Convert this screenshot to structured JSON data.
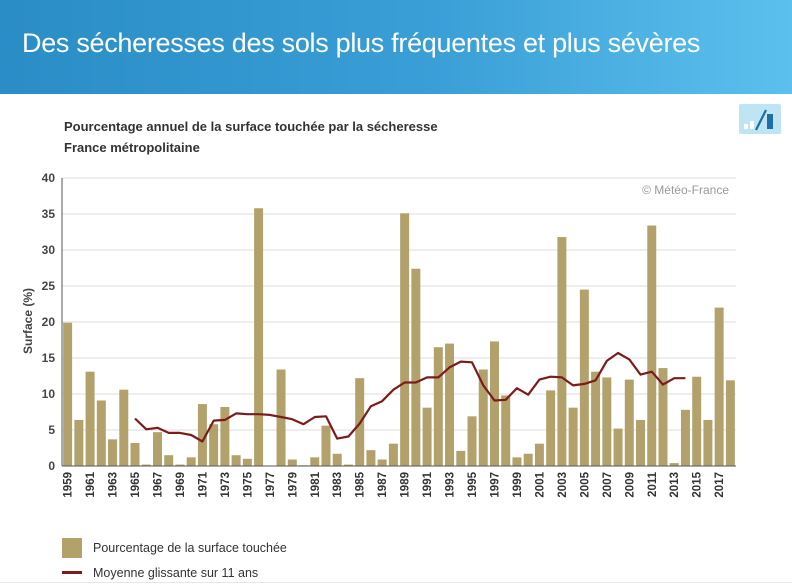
{
  "header": {
    "title": "Des sécheresses des sols plus fréquentes et plus sévères"
  },
  "chart_title_line1": "Pourcentage annuel de la surface touchée par la sécheresse",
  "chart_title_line2": "France métropolitaine",
  "watermark": "© Météo-France",
  "icons": {
    "chart_toggle": "bar-chart-icon"
  },
  "colors": {
    "header": "#2a8dc6",
    "bars": "#b3a16c",
    "line": "#7b1c1c"
  },
  "legend": {
    "bars": "Pourcentage de la surface touchée",
    "line": "Moyenne glissante sur 11 ans"
  },
  "chart_data": {
    "type": "bar",
    "ylabel": "Surface (%)",
    "ylim": [
      0,
      40
    ],
    "yticks": [
      0,
      5,
      10,
      15,
      20,
      25,
      30,
      35,
      40
    ],
    "grid": true,
    "xtick_labels": [
      "1959",
      "1961",
      "1963",
      "1965",
      "1967",
      "1969",
      "1971",
      "1973",
      "1975",
      "1977",
      "1979",
      "1981",
      "1983",
      "1985",
      "1987",
      "1989",
      "1991",
      "1993",
      "1995",
      "1997",
      "1999",
      "2001",
      "2003",
      "2005",
      "2007",
      "2009",
      "2011",
      "2013",
      "2015",
      "2017"
    ],
    "categories": [
      1959,
      1960,
      1961,
      1962,
      1963,
      1964,
      1965,
      1966,
      1967,
      1968,
      1969,
      1970,
      1971,
      1972,
      1973,
      1974,
      1975,
      1976,
      1977,
      1978,
      1979,
      1980,
      1981,
      1982,
      1983,
      1984,
      1985,
      1986,
      1987,
      1988,
      1989,
      1990,
      1991,
      1992,
      1993,
      1994,
      1995,
      1996,
      1997,
      1998,
      1999,
      2000,
      2001,
      2002,
      2003,
      2004,
      2005,
      2006,
      2007,
      2008,
      2009,
      2010,
      2011,
      2012,
      2013,
      2014,
      2015,
      2016,
      2017,
      2018
    ],
    "series": [
      {
        "name": "Pourcentage de la surface touchée",
        "type": "bar",
        "values": [
          19.9,
          6.4,
          13.1,
          9.1,
          3.7,
          10.6,
          3.2,
          0.2,
          4.7,
          1.5,
          0.2,
          1.2,
          8.6,
          5.8,
          8.2,
          1.5,
          1.0,
          35.8,
          0.0,
          13.4,
          0.9,
          0.1,
          1.2,
          5.6,
          1.7,
          0.2,
          12.2,
          2.2,
          0.9,
          3.1,
          35.1,
          27.4,
          8.1,
          16.5,
          17.0,
          2.1,
          6.9,
          13.4,
          17.3,
          9.8,
          1.2,
          1.7,
          3.1,
          10.5,
          31.8,
          8.1,
          24.5,
          13.1,
          12.3,
          5.2,
          12.0,
          6.4,
          33.4,
          13.6,
          0.4,
          7.8,
          12.4,
          6.4,
          22.0,
          11.9
        ]
      },
      {
        "name": "Moyenne glissante sur 11 ans",
        "type": "line",
        "values": [
          null,
          null,
          null,
          null,
          null,
          null,
          6.6,
          5.1,
          5.3,
          4.6,
          4.6,
          4.3,
          3.4,
          6.3,
          6.4,
          7.3,
          7.2,
          7.2,
          7.1,
          6.8,
          6.5,
          5.8,
          6.8,
          6.9,
          3.8,
          4.1,
          5.9,
          8.3,
          9.0,
          10.6,
          11.6,
          11.6,
          12.3,
          12.3,
          13.7,
          14.5,
          14.4,
          11.2,
          9.1,
          9.2,
          10.8,
          9.9,
          12.0,
          12.4,
          12.3,
          11.2,
          11.4,
          11.9,
          14.6,
          15.7,
          14.8,
          12.7,
          13.1,
          11.3,
          12.2,
          12.2,
          null,
          null,
          null,
          null
        ]
      }
    ]
  }
}
